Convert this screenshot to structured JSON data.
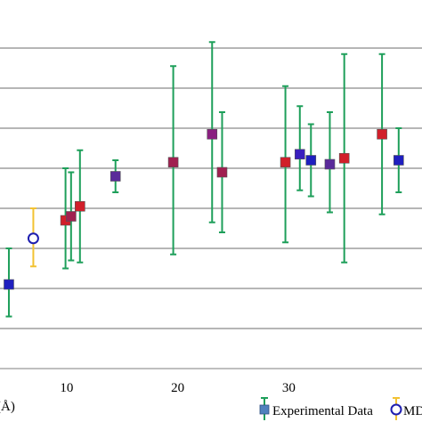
{
  "chart_data": {
    "type": "scatter",
    "xlabel": "(Å)",
    "x_ticks": [
      10,
      20,
      30
    ],
    "xlim": [
      4,
      42
    ],
    "ylim": [
      0,
      9
    ],
    "y_gridlines": [
      1,
      2,
      3,
      4,
      5,
      6,
      7,
      8
    ],
    "grid": "horizontal",
    "legend_position": "bottom-right",
    "legend": [
      {
        "label": "Experimental Data",
        "marker": "filled-square-with-errorbar",
        "color": "#4f81bd",
        "errorbar_color": "#1e9f5a"
      },
      {
        "label": "MD",
        "marker": "open-circle-with-errorbar",
        "color": "#1f1fb0",
        "errorbar_color": "#f2c232"
      }
    ],
    "series": [
      {
        "name": "Experimental Data",
        "points": [
          {
            "x": 4.8,
            "y": 2.1,
            "err_low": 0.8,
            "err_high": 0.9,
            "color": "#1f1fbf"
          },
          {
            "x": 9.9,
            "y": 3.7,
            "err_low": 1.2,
            "err_high": 1.3,
            "color": "#d11f2a"
          },
          {
            "x": 10.4,
            "y": 3.8,
            "err_low": 1.1,
            "err_high": 1.1,
            "color": "#a02050"
          },
          {
            "x": 11.2,
            "y": 4.05,
            "err_low": 1.4,
            "err_high": 1.4,
            "color": "#d11f2a"
          },
          {
            "x": 14.4,
            "y": 4.8,
            "err_low": 0.4,
            "err_high": 0.4,
            "color": "#5a2a9a"
          },
          {
            "x": 19.6,
            "y": 5.15,
            "err_low": 2.3,
            "err_high": 2.4,
            "color": "#a02050"
          },
          {
            "x": 23.1,
            "y": 5.85,
            "err_low": 2.2,
            "err_high": 2.3,
            "color": "#8a2080"
          },
          {
            "x": 24.0,
            "y": 4.9,
            "err_low": 1.5,
            "err_high": 1.5,
            "color": "#a02050"
          },
          {
            "x": 29.7,
            "y": 5.15,
            "err_low": 2.0,
            "err_high": 1.9,
            "color": "#d11f2a"
          },
          {
            "x": 31.0,
            "y": 5.35,
            "err_low": 0.9,
            "err_high": 1.2,
            "color": "#3a1fbf"
          },
          {
            "x": 32.0,
            "y": 5.2,
            "err_low": 0.9,
            "err_high": 0.9,
            "color": "#1f1fbf"
          },
          {
            "x": 33.7,
            "y": 5.1,
            "err_low": 1.2,
            "err_high": 1.3,
            "color": "#5a2a9a"
          },
          {
            "x": 35.0,
            "y": 5.25,
            "err_low": 2.6,
            "err_high": 2.6,
            "color": "#d11f2a"
          },
          {
            "x": 38.4,
            "y": 5.85,
            "err_low": 2.0,
            "err_high": 2.0,
            "color": "#d11f2a"
          },
          {
            "x": 39.9,
            "y": 5.2,
            "err_low": 0.8,
            "err_high": 0.8,
            "color": "#1f1fbf"
          }
        ]
      },
      {
        "name": "MD",
        "points": [
          {
            "x": 7.0,
            "y": 3.25,
            "err_low": 0.7,
            "err_high": 0.75,
            "color": "#1f1fb0"
          }
        ]
      }
    ]
  }
}
